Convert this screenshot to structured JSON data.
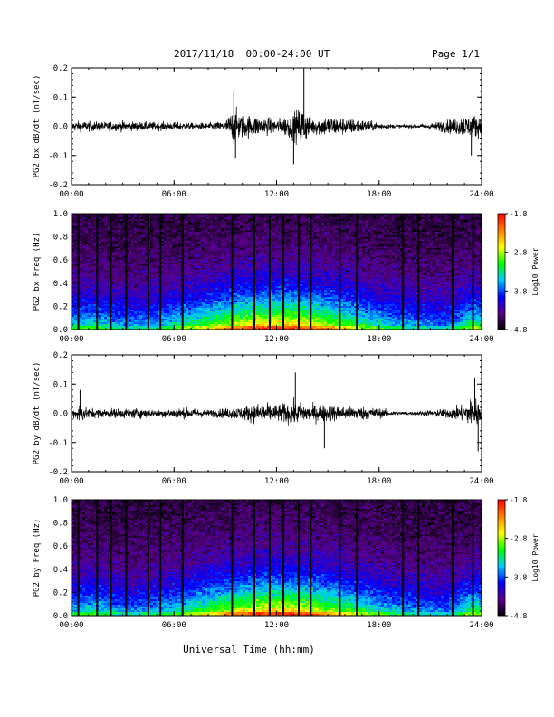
{
  "header": {
    "title": "2017/11/18  00:00-24:00 UT",
    "page": "Page 1/1"
  },
  "xlabel": "Universal Time (hh:mm)",
  "colors": {
    "trace": "#000000",
    "colormap": [
      "#000000",
      "#5a0088",
      "#0000ff",
      "#00c8ff",
      "#00ff00",
      "#ffff00",
      "#ff8000",
      "#ff0000"
    ]
  },
  "chart_data": [
    {
      "type": "line",
      "ylabel": "PG2 bx dB/dt (nT/sec)",
      "xlim": [
        0,
        24
      ],
      "ylim": [
        -0.2,
        0.2
      ],
      "xticks": [
        "00:00",
        "06:00",
        "12:00",
        "18:00",
        "24:00"
      ],
      "yticks": [
        "-0.2",
        "-0.1",
        "0.0",
        "0.1",
        "0.2"
      ],
      "x": [
        0,
        1,
        2,
        3,
        4,
        5,
        6,
        7,
        8,
        9,
        9.5,
        10,
        11,
        12,
        13,
        13.5,
        14,
        15,
        16,
        17,
        18,
        19,
        20,
        21,
        22,
        23,
        24
      ],
      "envelope": [
        0.03,
        0.03,
        0.025,
        0.03,
        0.025,
        0.025,
        0.025,
        0.02,
        0.02,
        0.03,
        0.11,
        0.07,
        0.06,
        0.04,
        0.08,
        0.12,
        0.05,
        0.06,
        0.05,
        0.04,
        0.02,
        0.01,
        0.01,
        0.02,
        0.04,
        0.06,
        0.07
      ],
      "spikes": [
        [
          9.5,
          0.12
        ],
        [
          9.6,
          -0.11
        ],
        [
          13.0,
          -0.13
        ],
        [
          13.6,
          0.2
        ],
        [
          23.4,
          -0.1
        ]
      ]
    },
    {
      "type": "heatmap",
      "ylabel": "PG2 bx Freq (Hz)",
      "zlabel": "Log10 Power",
      "xlim": [
        0,
        24
      ],
      "ylim": [
        0,
        1
      ],
      "zlim": [
        -4.8,
        -1.8
      ],
      "xticks": [
        "00:00",
        "06:00",
        "12:00",
        "18:00",
        "24:00"
      ],
      "yticks": [
        "0.0",
        "0.2",
        "0.4",
        "0.6",
        "0.8",
        "1.0"
      ],
      "zticks": [
        "-1.8",
        "-2.8",
        "-3.8",
        "-4.8"
      ],
      "gaps": [
        0.4,
        1.5,
        2.3,
        3.2,
        4.5,
        5.2,
        6.5,
        9.4,
        10.7,
        11.6,
        12.4,
        13.3,
        14.0,
        15.7,
        16.7,
        19.4,
        20.3,
        22.3,
        23.5
      ]
    },
    {
      "type": "line",
      "ylabel": "PG2 by dB/dt (nT/sec)",
      "xlim": [
        0,
        24
      ],
      "ylim": [
        -0.2,
        0.2
      ],
      "xticks": [
        "00:00",
        "06:00",
        "12:00",
        "18:00",
        "24:00"
      ],
      "yticks": [
        "-0.2",
        "-0.1",
        "0.0",
        "0.1",
        "0.2"
      ],
      "x": [
        0,
        0.5,
        1,
        2,
        3,
        4,
        5,
        6,
        7,
        8,
        9,
        10,
        11,
        12,
        13,
        14,
        15,
        16,
        17,
        18,
        19,
        20,
        21,
        22,
        23,
        23.5,
        24
      ],
      "envelope": [
        0.02,
        0.06,
        0.03,
        0.025,
        0.03,
        0.03,
        0.02,
        0.03,
        0.03,
        0.02,
        0.03,
        0.04,
        0.06,
        0.05,
        0.07,
        0.05,
        0.05,
        0.04,
        0.04,
        0.03,
        0.01,
        0.01,
        0.02,
        0.03,
        0.05,
        0.1,
        0.07
      ],
      "spikes": [
        [
          13.1,
          0.14
        ],
        [
          14.8,
          -0.12
        ],
        [
          23.6,
          0.12
        ],
        [
          23.8,
          -0.13
        ],
        [
          0.5,
          0.08
        ]
      ]
    },
    {
      "type": "heatmap",
      "ylabel": "PG2 by Freq (Hz)",
      "zlabel": "Log10 Power",
      "xlim": [
        0,
        24
      ],
      "ylim": [
        0,
        1
      ],
      "zlim": [
        -4.8,
        -1.8
      ],
      "xticks": [
        "00:00",
        "06:00",
        "12:00",
        "18:00",
        "24:00"
      ],
      "yticks": [
        "0.0",
        "0.2",
        "0.4",
        "0.6",
        "0.8",
        "1.0"
      ],
      "zticks": [
        "-1.8",
        "-2.8",
        "-3.8",
        "-4.8"
      ],
      "gaps": [
        0.4,
        1.5,
        2.3,
        3.2,
        4.5,
        5.2,
        6.5,
        9.4,
        10.7,
        11.6,
        12.4,
        13.3,
        14.0,
        15.7,
        16.7,
        19.4,
        20.3,
        22.3,
        23.5
      ]
    }
  ]
}
